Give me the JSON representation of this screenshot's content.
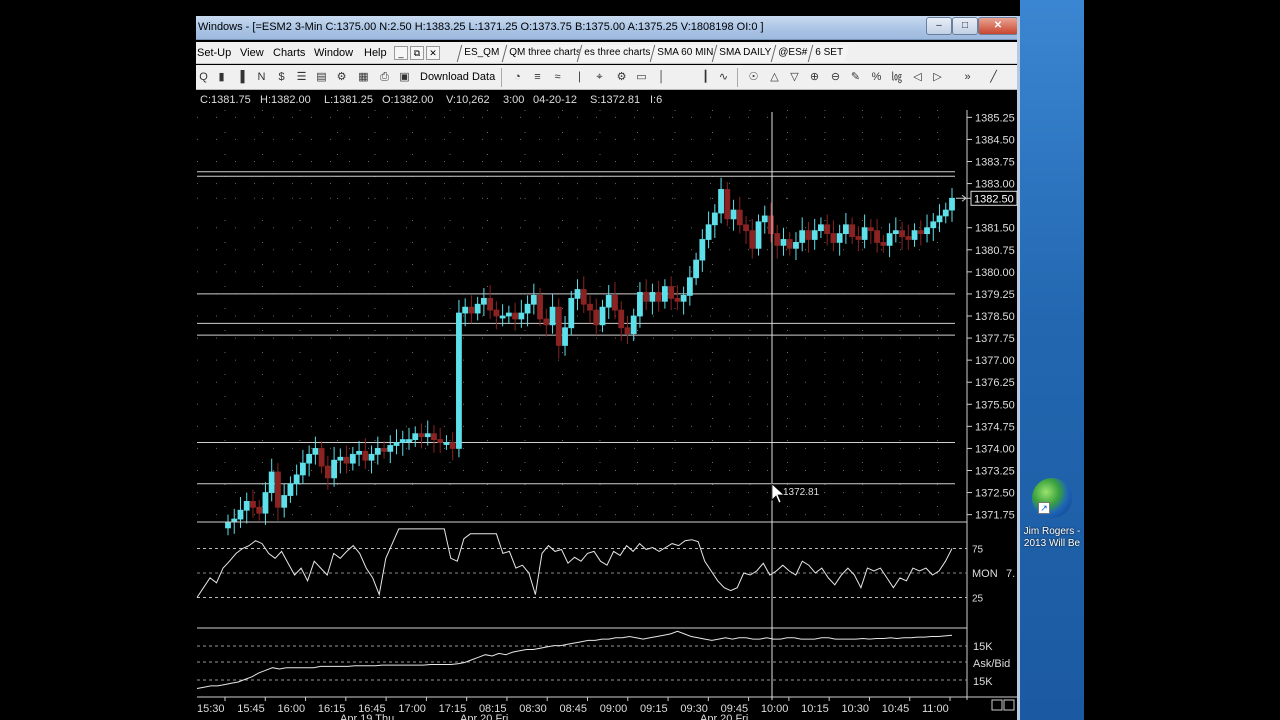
{
  "window": {
    "title": "Windows - [=ESM2 3-Min C:1375.00 N:2.50 H:1383.25 L:1371.25 O:1373.75 B:1375.00 A:1375.25 V:1808198 OI:0 ]",
    "minimize_glyph": "–",
    "maximize_glyph": "□",
    "close_glyph": "✕"
  },
  "menu": {
    "items": [
      "Set-Up",
      "View",
      "Charts",
      "Window",
      "Help"
    ],
    "mdi_buttons": [
      "_",
      "⧉",
      "✕"
    ],
    "chart_tabs": [
      "ES_QM",
      "QM three charts",
      "es three charts",
      "SMA 60 MIN",
      "SMA DAILY",
      "@ES#",
      "6 SET"
    ]
  },
  "toolbar": {
    "download_label": "Download Data",
    "icons_left": [
      "Q",
      "▮",
      "▐",
      "N",
      "$",
      "☰",
      "▤",
      "⚙",
      "▦",
      "⎙",
      "▣"
    ],
    "icons_right": [
      "◔",
      "≡",
      "≈",
      "∣",
      "⌖",
      "⚙",
      "▭",
      "│",
      "┃",
      "∿",
      "☉",
      "△",
      "▽",
      "⊕",
      "⊖",
      "✎",
      "%",
      "㏒",
      "◁",
      "▷",
      "»",
      "╱"
    ]
  },
  "infobar": {
    "close": "C:1381.75",
    "high": "H:1382.00",
    "low": "L:1381.25",
    "open": "O:1382.00",
    "volume": "V:10,262",
    "time": "3:00",
    "date": "04-20-12",
    "s_value": "S:1372.81",
    "i_value": "I:6"
  },
  "desktop": {
    "icon_label_1": "Jim Rogers -",
    "icon_label_2": "2013 Will Be"
  },
  "colors": {
    "up_candle": "#5ee0ea",
    "down_candle": "#8b2323",
    "hline": "#cfcfcf",
    "grid_dot": "#6a6a6a",
    "indicator": "#e6e6e6"
  },
  "chart_data": {
    "type": "candlestick",
    "price_axis_labels": [
      "1385.25",
      "1384.50",
      "1383.75",
      "1383.00",
      "1382.50",
      "1381.50",
      "1380.75",
      "1380.00",
      "1379.25",
      "1378.50",
      "1377.75",
      "1377.00",
      "1376.25",
      "1375.50",
      "1374.75",
      "1374.00",
      "1373.25",
      "1372.50",
      "1371.75"
    ],
    "price_range": [
      1371.5,
      1385.5
    ],
    "last_price_label": "1382.50",
    "cursor_price_label": "1372.81",
    "horizontal_lines": [
      1383.4,
      1383.25,
      1379.25,
      1378.25,
      1377.85,
      1374.2,
      1372.8
    ],
    "time_labels": [
      "15:30",
      "15:45",
      "16:00",
      "16:15",
      "16:45",
      "17:00",
      "17:15",
      "08:15",
      "08:30",
      "08:45",
      "09:00",
      "09:15",
      "09:30",
      "09:45",
      "10:00",
      "10:15",
      "10:30",
      "10:45",
      "11:00"
    ],
    "date_labels": [
      "Apr 19 Thu",
      "Apr 20 Fri",
      "Apr 20 Fri"
    ],
    "closes": [
      1371.5,
      1371.6,
      1371.9,
      1372.2,
      1372.0,
      1371.8,
      1372.5,
      1373.2,
      1372.0,
      1372.4,
      1372.8,
      1373.1,
      1373.5,
      1373.8,
      1374.0,
      1373.4,
      1373.0,
      1373.6,
      1373.7,
      1373.5,
      1373.8,
      1373.9,
      1373.6,
      1373.8,
      1374.0,
      1373.9,
      1374.1,
      1374.2,
      1374.3,
      1374.3,
      1374.5,
      1374.4,
      1374.5,
      1374.3,
      1374.2,
      1374.2,
      1374.0,
      1378.6,
      1378.8,
      1378.6,
      1378.9,
      1379.1,
      1378.7,
      1378.5,
      1378.5,
      1378.6,
      1378.4,
      1378.6,
      1378.9,
      1379.2,
      1378.4,
      1378.2,
      1378.8,
      1377.5,
      1378.1,
      1379.1,
      1379.4,
      1378.9,
      1378.7,
      1378.2,
      1378.8,
      1379.2,
      1378.7,
      1378.1,
      1377.9,
      1378.5,
      1379.3,
      1379.0,
      1379.3,
      1379.0,
      1379.5,
      1379.1,
      1379.0,
      1379.2,
      1379.8,
      1380.4,
      1381.1,
      1381.6,
      1382.0,
      1382.8,
      1381.8,
      1382.1,
      1381.6,
      1381.4,
      1380.8,
      1381.7,
      1381.9,
      1381.3,
      1380.9,
      1381.1,
      1380.8,
      1381.0,
      1381.4,
      1381.1,
      1381.4,
      1381.6,
      1381.3,
      1381.0,
      1381.3,
      1381.6,
      1381.2,
      1381.1,
      1381.5,
      1381.4,
      1381.0,
      1380.9,
      1381.3,
      1381.4,
      1381.2,
      1381.1,
      1381.4,
      1381.3,
      1381.5,
      1381.7,
      1381.9,
      1382.1,
      1382.5
    ],
    "oscillator": {
      "label": "MON",
      "value_label": "7.",
      "levels": [
        "75",
        "25"
      ],
      "values": [
        25,
        35,
        45,
        40,
        55,
        62,
        70,
        75,
        78,
        83,
        80,
        70,
        65,
        72,
        60,
        48,
        55,
        42,
        62,
        55,
        48,
        70,
        65,
        72,
        78,
        70,
        55,
        45,
        28,
        65,
        80,
        95,
        95,
        95,
        95,
        95,
        95,
        95,
        95,
        65,
        62,
        85,
        90,
        90,
        90,
        90,
        90,
        70,
        72,
        55,
        58,
        50,
        28,
        70,
        78,
        72,
        74,
        60,
        66,
        62,
        70,
        72,
        62,
        58,
        72,
        68,
        78,
        72,
        80,
        74,
        76,
        72,
        76,
        80,
        78,
        83,
        84,
        82,
        62,
        52,
        42,
        35,
        32,
        35,
        50,
        48,
        52,
        60,
        48,
        52,
        58,
        52,
        48,
        62,
        58,
        50,
        55,
        45,
        38,
        48,
        55,
        48,
        35,
        55,
        52,
        55,
        45,
        35,
        45,
        42,
        55,
        52,
        55,
        48,
        52,
        62,
        75
      ]
    },
    "lower_panel": {
      "labels": [
        "15K",
        "Ask/Bid",
        "15K"
      ],
      "values": [
        10,
        12,
        14,
        14,
        16,
        18,
        20,
        24,
        28,
        34,
        38,
        42,
        40,
        42,
        42,
        42,
        42,
        42,
        44,
        44,
        44,
        44,
        44,
        45,
        45,
        45,
        45,
        46,
        46,
        46,
        46,
        46,
        46,
        46,
        47,
        47,
        47,
        47,
        48,
        50,
        54,
        58,
        62,
        60,
        64,
        62,
        66,
        68,
        70,
        70,
        72,
        74,
        76,
        76,
        78,
        80,
        82,
        84,
        84,
        86,
        86,
        88,
        88,
        90,
        88,
        86,
        88,
        90,
        92,
        94,
        98,
        94,
        90,
        88,
        86,
        84,
        86,
        88,
        86,
        88,
        88,
        86,
        86,
        88,
        86,
        86,
        88,
        88,
        86,
        86,
        86,
        88,
        88,
        86,
        86,
        86,
        86,
        87,
        86,
        87,
        87,
        88,
        87,
        88,
        88,
        89,
        89,
        90,
        90,
        91,
        92
      ]
    }
  }
}
